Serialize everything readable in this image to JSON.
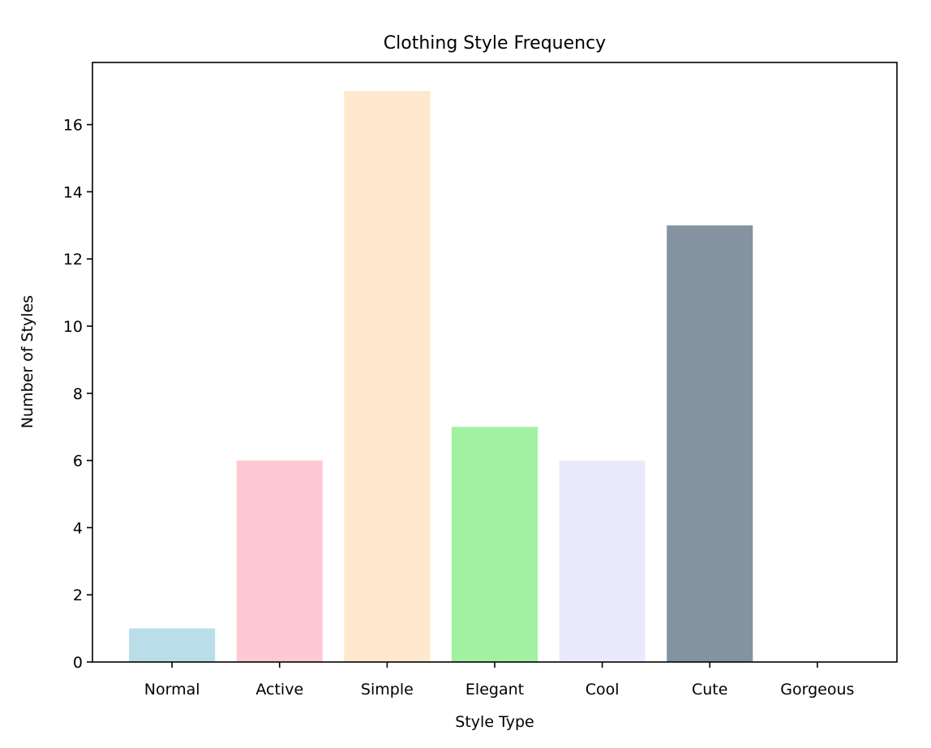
{
  "chart_data": {
    "type": "bar",
    "title": "Clothing Style Frequency",
    "xlabel": "Style Type",
    "ylabel": "Number of Styles",
    "categories": [
      "Normal",
      "Active",
      "Simple",
      "Elegant",
      "Cool",
      "Cute",
      "Gorgeous"
    ],
    "values": [
      1,
      6,
      17,
      7,
      6,
      13,
      0
    ],
    "colors": [
      "#add8e6",
      "#ffc0cb",
      "#ffe4c4",
      "#90ee90",
      "#e6e6fa",
      "#708090",
      "#ffe4e1"
    ],
    "bar_alpha": 0.85,
    "ylim": [
      0,
      17.85
    ],
    "yticks": [
      0,
      2,
      4,
      6,
      8,
      10,
      12,
      14,
      16
    ],
    "grid": false,
    "legend": "none"
  }
}
